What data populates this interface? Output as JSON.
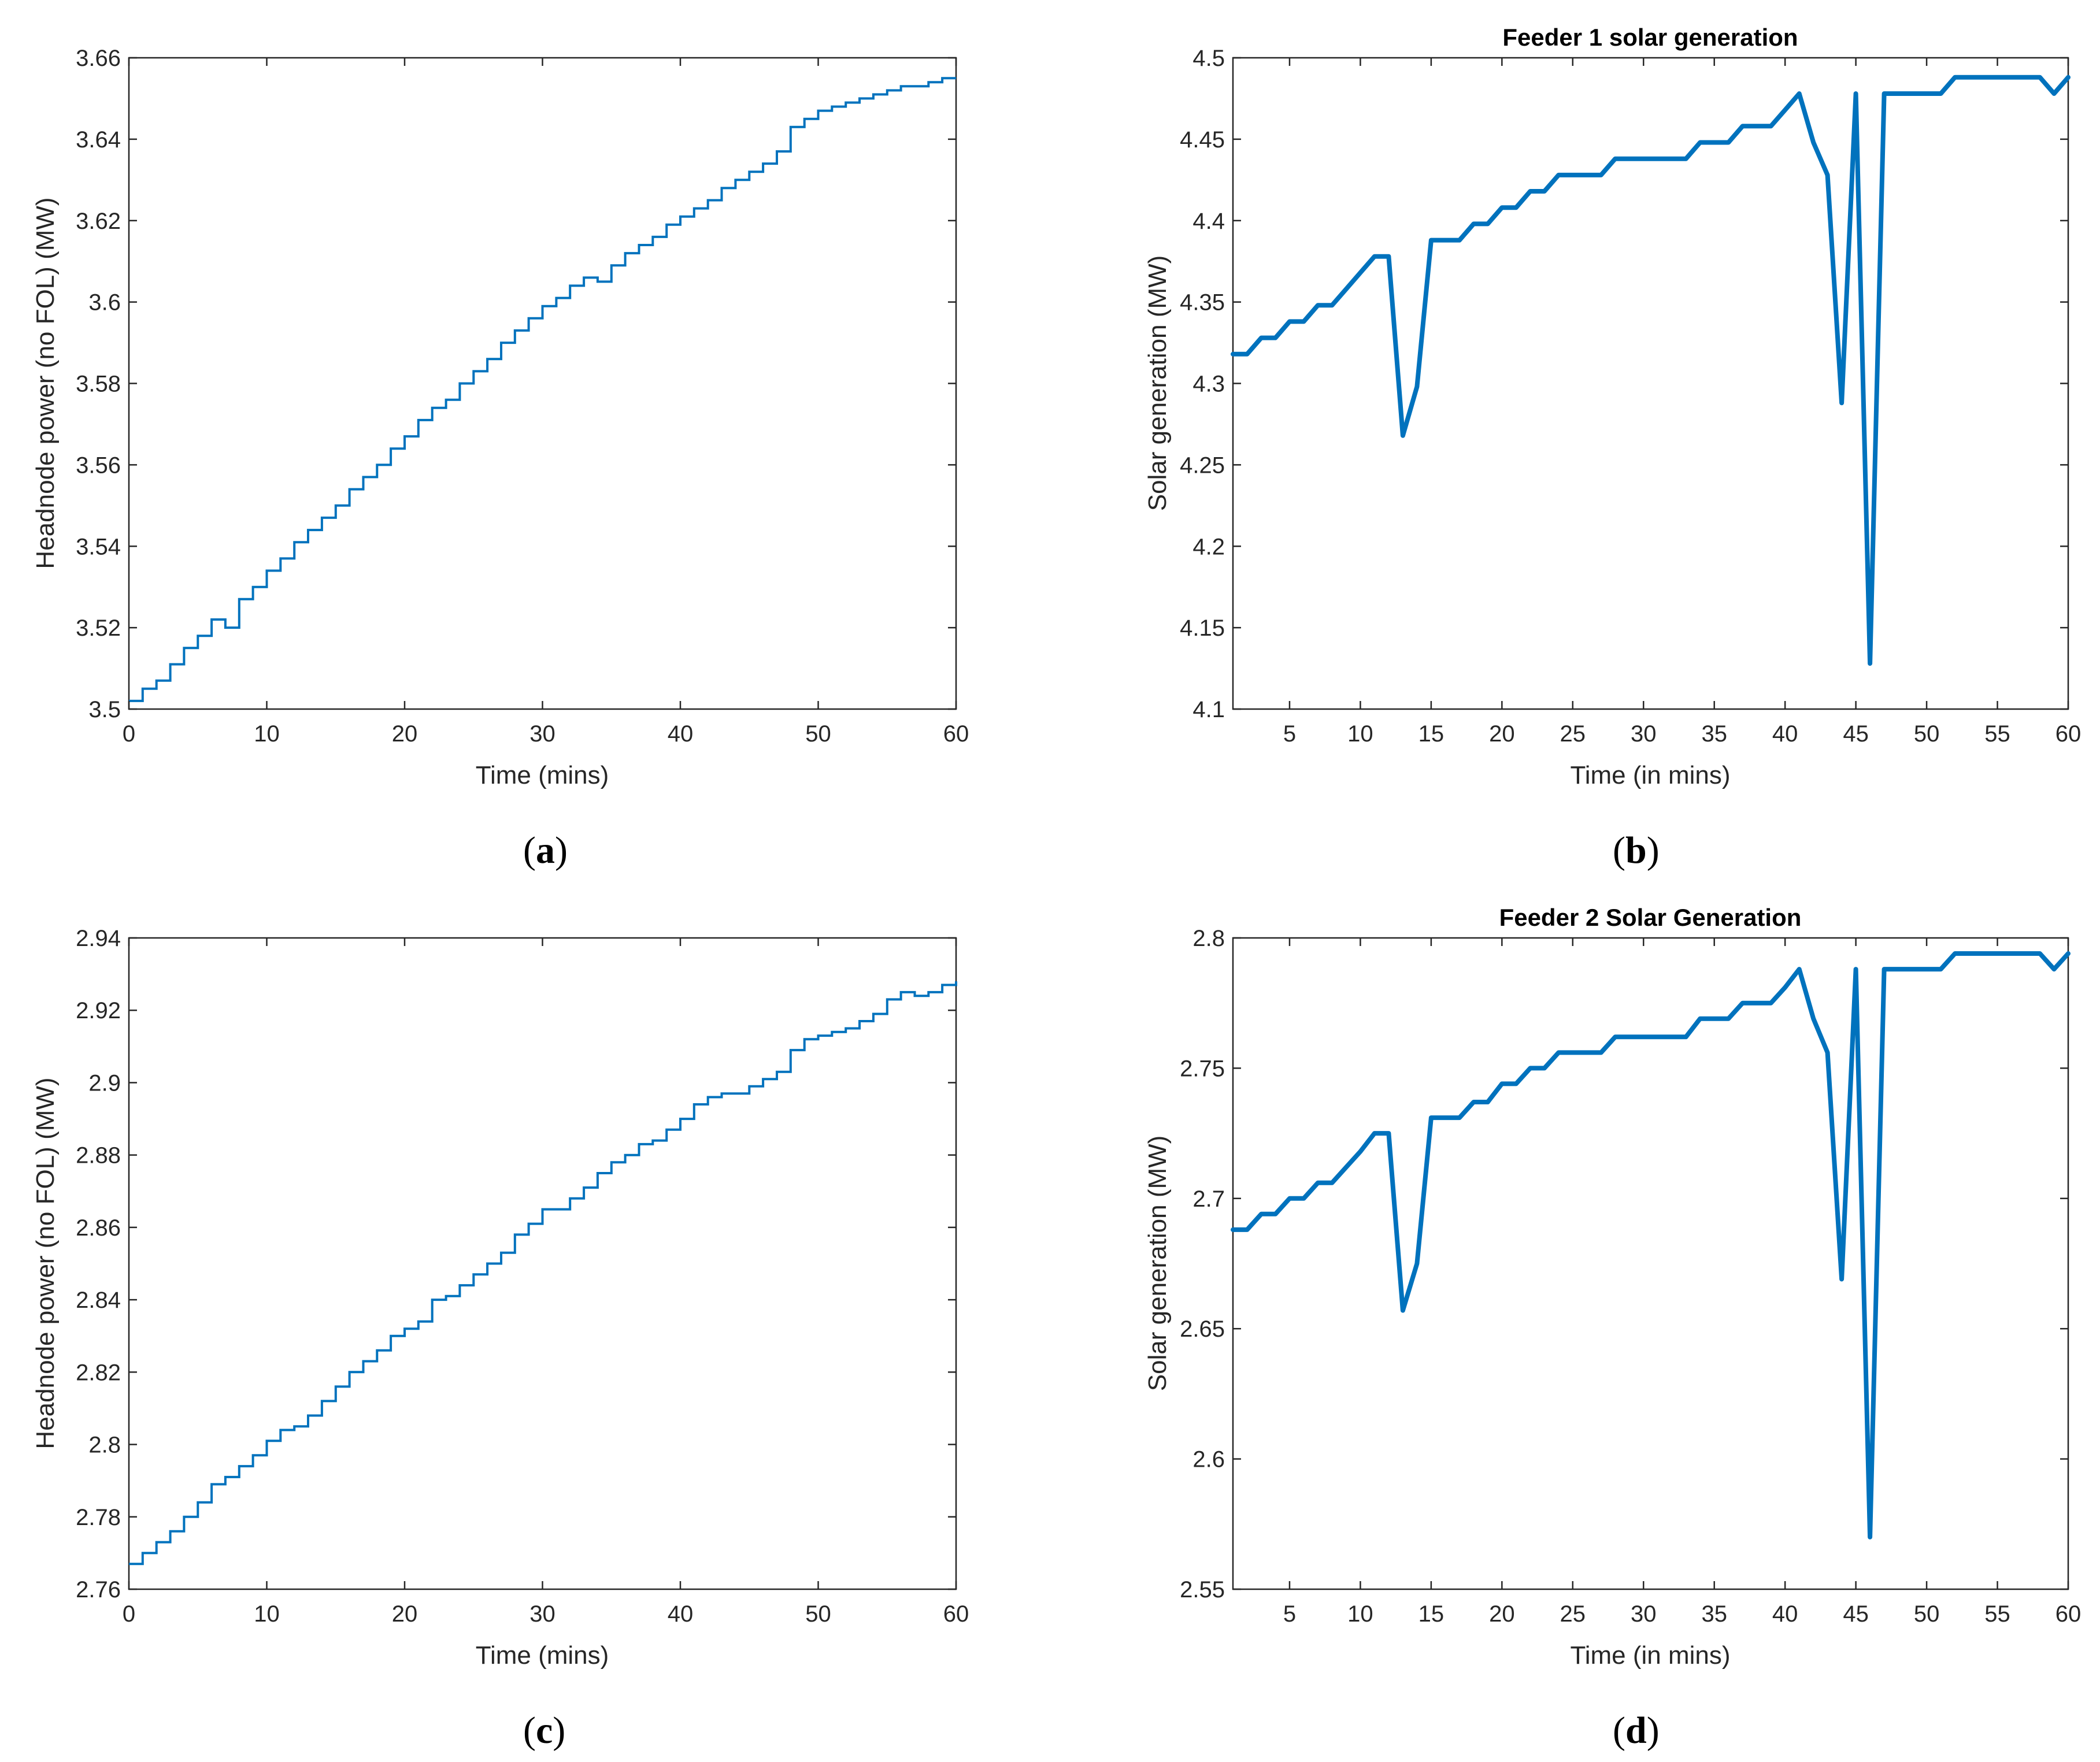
{
  "colors": {
    "line": "#0072BD",
    "axis": "#262626"
  },
  "chart_data": [
    {
      "id": "a",
      "panel_label": "a",
      "type": "line",
      "style": "stairs",
      "title": "",
      "xlabel": "Time (mins)",
      "ylabel": "Headnode power (no FOL) (MW)",
      "xlim": [
        0,
        60
      ],
      "ylim": [
        3.5,
        3.66
      ],
      "xticks": [
        0,
        10,
        20,
        30,
        40,
        50,
        60
      ],
      "xtick_labels": [
        "0",
        "10",
        "20",
        "30",
        "40",
        "50",
        "60"
      ],
      "yticks": [
        3.5,
        3.52,
        3.54,
        3.56,
        3.58,
        3.6,
        3.62,
        3.64,
        3.66
      ],
      "ytick_labels": [
        "3.5",
        "3.52",
        "3.54",
        "3.56",
        "3.58",
        "3.6",
        "3.62",
        "3.64",
        "3.66"
      ],
      "x": [
        0,
        1,
        2,
        3,
        4,
        5,
        6,
        7,
        8,
        9,
        10,
        11,
        12,
        13,
        14,
        15,
        16,
        17,
        18,
        19,
        20,
        21,
        22,
        23,
        24,
        25,
        26,
        27,
        28,
        29,
        30,
        31,
        32,
        33,
        34,
        35,
        36,
        37,
        38,
        39,
        40,
        41,
        42,
        43,
        44,
        45,
        46,
        47,
        48,
        49,
        50,
        51,
        52,
        53,
        54,
        55,
        56,
        57,
        58,
        59,
        60
      ],
      "values": [
        3.502,
        3.505,
        3.507,
        3.511,
        3.515,
        3.518,
        3.522,
        3.52,
        3.527,
        3.53,
        3.534,
        3.537,
        3.541,
        3.544,
        3.547,
        3.55,
        3.554,
        3.557,
        3.56,
        3.564,
        3.567,
        3.571,
        3.574,
        3.576,
        3.58,
        3.583,
        3.586,
        3.59,
        3.593,
        3.596,
        3.599,
        3.601,
        3.604,
        3.606,
        3.605,
        3.609,
        3.612,
        3.614,
        3.616,
        3.619,
        3.621,
        3.623,
        3.625,
        3.628,
        3.63,
        3.632,
        3.634,
        3.637,
        3.643,
        3.645,
        3.647,
        3.648,
        3.649,
        3.65,
        3.651,
        3.652,
        3.653,
        3.653,
        3.654,
        3.655,
        3.655
      ]
    },
    {
      "id": "b",
      "panel_label": "b",
      "type": "line",
      "style": "line",
      "title": "Feeder 1 solar generation",
      "xlabel": "Time (in mins)",
      "ylabel": "Solar generation (MW)",
      "xlim": [
        1,
        60
      ],
      "ylim": [
        4.1,
        4.5
      ],
      "xticks": [
        5,
        10,
        15,
        20,
        25,
        30,
        35,
        40,
        45,
        50,
        55,
        60
      ],
      "xtick_labels": [
        "5",
        "10",
        "15",
        "20",
        "25",
        "30",
        "35",
        "40",
        "45",
        "50",
        "55",
        "60"
      ],
      "yticks": [
        4.1,
        4.15,
        4.2,
        4.25,
        4.3,
        4.35,
        4.4,
        4.45,
        4.5
      ],
      "ytick_labels": [
        "4.1",
        "4.15",
        "4.2",
        "4.25",
        "4.3",
        "4.35",
        "4.4",
        "4.45",
        "4.5"
      ],
      "x": [
        1,
        2,
        3,
        4,
        5,
        6,
        7,
        8,
        9,
        10,
        11,
        12,
        13,
        14,
        15,
        16,
        17,
        18,
        19,
        20,
        21,
        22,
        23,
        24,
        25,
        26,
        27,
        28,
        29,
        30,
        31,
        32,
        33,
        34,
        35,
        36,
        37,
        38,
        39,
        40,
        41,
        42,
        43,
        44,
        45,
        46,
        47,
        48,
        49,
        50,
        51,
        52,
        53,
        54,
        55,
        56,
        57,
        58,
        59,
        60
      ],
      "values": [
        4.318,
        4.318,
        4.328,
        4.328,
        4.338,
        4.338,
        4.348,
        4.348,
        4.358,
        4.368,
        4.378,
        4.378,
        4.268,
        4.298,
        4.388,
        4.388,
        4.388,
        4.398,
        4.398,
        4.408,
        4.408,
        4.418,
        4.418,
        4.428,
        4.428,
        4.428,
        4.428,
        4.438,
        4.438,
        4.438,
        4.438,
        4.438,
        4.438,
        4.448,
        4.448,
        4.448,
        4.458,
        4.458,
        4.458,
        4.468,
        4.478,
        4.448,
        4.428,
        4.288,
        4.478,
        4.128,
        4.478,
        4.478,
        4.478,
        4.478,
        4.478,
        4.488,
        4.488,
        4.488,
        4.488,
        4.488,
        4.488,
        4.488,
        4.478,
        4.488
      ]
    },
    {
      "id": "c",
      "panel_label": "c",
      "type": "line",
      "style": "stairs",
      "title": "",
      "xlabel": "Time (mins)",
      "ylabel": "Headnode power (no FOL) (MW)",
      "xlim": [
        0,
        60
      ],
      "ylim": [
        2.76,
        2.94
      ],
      "xticks": [
        0,
        10,
        20,
        30,
        40,
        50,
        60
      ],
      "xtick_labels": [
        "0",
        "10",
        "20",
        "30",
        "40",
        "50",
        "60"
      ],
      "yticks": [
        2.76,
        2.78,
        2.8,
        2.82,
        2.84,
        2.86,
        2.88,
        2.9,
        2.92,
        2.94
      ],
      "ytick_labels": [
        "2.76",
        "2.78",
        "2.8",
        "2.82",
        "2.84",
        "2.86",
        "2.88",
        "2.9",
        "2.92",
        "2.94"
      ],
      "x": [
        0,
        1,
        2,
        3,
        4,
        5,
        6,
        7,
        8,
        9,
        10,
        11,
        12,
        13,
        14,
        15,
        16,
        17,
        18,
        19,
        20,
        21,
        22,
        23,
        24,
        25,
        26,
        27,
        28,
        29,
        30,
        31,
        32,
        33,
        34,
        35,
        36,
        37,
        38,
        39,
        40,
        41,
        42,
        43,
        44,
        45,
        46,
        47,
        48,
        49,
        50,
        51,
        52,
        53,
        54,
        55,
        56,
        57,
        58,
        59,
        60
      ],
      "values": [
        2.767,
        2.77,
        2.773,
        2.776,
        2.78,
        2.784,
        2.789,
        2.791,
        2.794,
        2.797,
        2.801,
        2.804,
        2.805,
        2.808,
        2.812,
        2.816,
        2.82,
        2.823,
        2.826,
        2.83,
        2.832,
        2.834,
        2.84,
        2.841,
        2.844,
        2.847,
        2.85,
        2.853,
        2.858,
        2.861,
        2.865,
        2.865,
        2.868,
        2.871,
        2.875,
        2.878,
        2.88,
        2.883,
        2.884,
        2.887,
        2.89,
        2.894,
        2.896,
        2.897,
        2.897,
        2.899,
        2.901,
        2.903,
        2.909,
        2.912,
        2.913,
        2.914,
        2.915,
        2.917,
        2.919,
        2.923,
        2.925,
        2.924,
        2.925,
        2.927,
        2.928
      ]
    },
    {
      "id": "d",
      "panel_label": "d",
      "type": "line",
      "style": "line",
      "title": "Feeder 2 Solar Generation",
      "xlabel": "Time (in mins)",
      "ylabel": "Solar generation (MW)",
      "xlim": [
        1,
        60
      ],
      "ylim": [
        2.55,
        2.8
      ],
      "xticks": [
        5,
        10,
        15,
        20,
        25,
        30,
        35,
        40,
        45,
        50,
        55,
        60
      ],
      "xtick_labels": [
        "5",
        "10",
        "15",
        "20",
        "25",
        "30",
        "35",
        "40",
        "45",
        "50",
        "55",
        "60"
      ],
      "yticks": [
        2.55,
        2.6,
        2.65,
        2.7,
        2.75,
        2.8
      ],
      "ytick_labels": [
        "2.55",
        "2.6",
        "2.65",
        "2.7",
        "2.75",
        "2.8"
      ],
      "x": [
        1,
        2,
        3,
        4,
        5,
        6,
        7,
        8,
        9,
        10,
        11,
        12,
        13,
        14,
        15,
        16,
        17,
        18,
        19,
        20,
        21,
        22,
        23,
        24,
        25,
        26,
        27,
        28,
        29,
        30,
        31,
        32,
        33,
        34,
        35,
        36,
        37,
        38,
        39,
        40,
        41,
        42,
        43,
        44,
        45,
        46,
        47,
        48,
        49,
        50,
        51,
        52,
        53,
        54,
        55,
        56,
        57,
        58,
        59,
        60
      ],
      "values": [
        2.688,
        2.688,
        2.694,
        2.694,
        2.7,
        2.7,
        2.706,
        2.706,
        2.712,
        2.718,
        2.725,
        2.725,
        2.657,
        2.675,
        2.731,
        2.731,
        2.731,
        2.737,
        2.737,
        2.744,
        2.744,
        2.75,
        2.75,
        2.756,
        2.756,
        2.756,
        2.756,
        2.762,
        2.762,
        2.762,
        2.762,
        2.762,
        2.762,
        2.769,
        2.769,
        2.769,
        2.775,
        2.775,
        2.775,
        2.781,
        2.788,
        2.769,
        2.756,
        2.669,
        2.788,
        2.57,
        2.788,
        2.788,
        2.788,
        2.788,
        2.788,
        2.794,
        2.794,
        2.794,
        2.794,
        2.794,
        2.794,
        2.794,
        2.788,
        2.794
      ]
    }
  ]
}
